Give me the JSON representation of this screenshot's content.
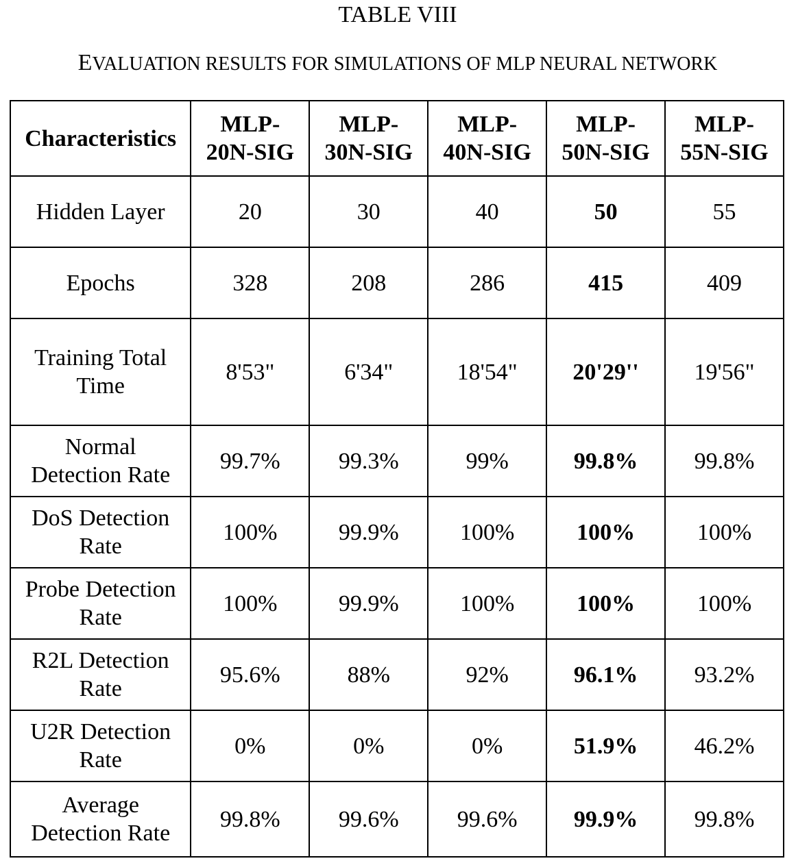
{
  "title": "TABLE VIII",
  "caption": {
    "lead": "E",
    "rest": "VALUATION RESULTS FOR SIMULATIONS  OF MLP NEURAL NETWORK"
  },
  "table": {
    "corner_header": "Characteristics",
    "columns": [
      {
        "line1": "MLP-",
        "line2": "20N-SIG"
      },
      {
        "line1": "MLP-",
        "line2": "30N-SIG"
      },
      {
        "line1": "MLP-",
        "line2": "40N-SIG"
      },
      {
        "line1": "MLP-",
        "line2": "50N-SIG"
      },
      {
        "line1": "MLP-",
        "line2": "55N-SIG"
      }
    ],
    "rows": [
      {
        "label1": "Hidden Layer",
        "label2": "",
        "values": [
          "20",
          "30",
          "40",
          "50",
          "55"
        ]
      },
      {
        "label1": "Epochs",
        "label2": "",
        "values": [
          "328",
          "208",
          "286",
          "415",
          "409"
        ]
      },
      {
        "label1": "Training Total",
        "label2": "Time",
        "values": [
          "8'53\"",
          "6'34\"",
          "18'54\"",
          "20'29''",
          "19'56\""
        ]
      },
      {
        "label1": "Normal",
        "label2": "Detection Rate",
        "values": [
          "99.7%",
          "99.3%",
          "99%",
          "99.8%",
          "99.8%"
        ]
      },
      {
        "label1": "DoS Detection",
        "label2": "Rate",
        "values": [
          "100%",
          "99.9%",
          "100%",
          "100%",
          "100%"
        ]
      },
      {
        "label1": "Probe Detection",
        "label2": "Rate",
        "values": [
          "100%",
          "99.9%",
          "100%",
          "100%",
          "100%"
        ]
      },
      {
        "label1": "R2L Detection",
        "label2": "Rate",
        "values": [
          "95.6%",
          "88%",
          "92%",
          "96.1%",
          "93.2%"
        ]
      },
      {
        "label1": "U2R Detection",
        "label2": "Rate",
        "values": [
          "0%",
          "0%",
          "0%",
          "51.9%",
          "46.2%"
        ]
      },
      {
        "label1": "Average",
        "label2": "Detection Rate",
        "values": [
          "99.8%",
          "99.6%",
          "99.6%",
          "99.9%",
          "99.8%"
        ]
      }
    ]
  }
}
